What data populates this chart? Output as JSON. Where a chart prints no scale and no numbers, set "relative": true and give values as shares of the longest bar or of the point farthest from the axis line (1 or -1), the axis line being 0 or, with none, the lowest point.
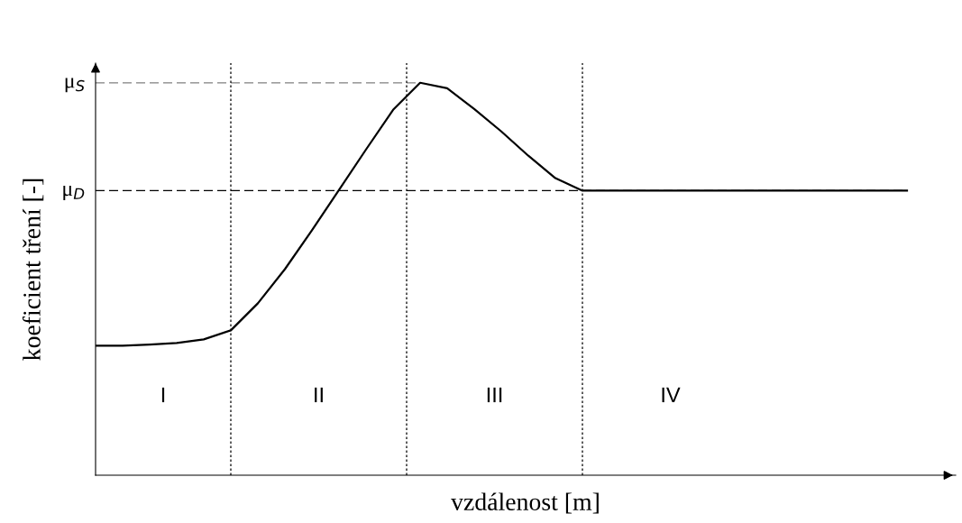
{
  "chart_data": {
    "type": "line",
    "relative": true,
    "xlabel": "vzdálenost [m]",
    "ylabel": "koeficient tření [-]",
    "categories": [
      null,
      null,
      null,
      null,
      null,
      null,
      null,
      null,
      null,
      null,
      null,
      null,
      null,
      null,
      null,
      null,
      null,
      null,
      null,
      null,
      null,
      null,
      null,
      null,
      null,
      null,
      null,
      null,
      null,
      null,
      null
    ],
    "series": [
      {
        "color": "#000000",
        "values": [
          0.33,
          0.33,
          0.333,
          0.337,
          0.346,
          0.369,
          0.438,
          0.525,
          0.624,
          0.727,
          0.83,
          0.931,
          1.0,
          0.986,
          0.933,
          0.876,
          0.814,
          0.757,
          0.725,
          0.725,
          0.725,
          0.725,
          0.725,
          0.725,
          0.725,
          0.725,
          0.725,
          0.725,
          0.725,
          0.725,
          0.725
        ]
      }
    ],
    "ref_lines": [
      {
        "axis": "y",
        "value": 1.0,
        "label": "μ$_{S}$",
        "color": "#808080",
        "line_style": "dashed"
      },
      {
        "axis": "y",
        "value": 0.725,
        "label": "μ$_{D}$",
        "color": "#000000",
        "line_style": "dashed"
      }
    ],
    "annotations": [
      "I",
      "II",
      "III",
      "IV"
    ],
    "marker": "none",
    "line_style": "solid"
  }
}
